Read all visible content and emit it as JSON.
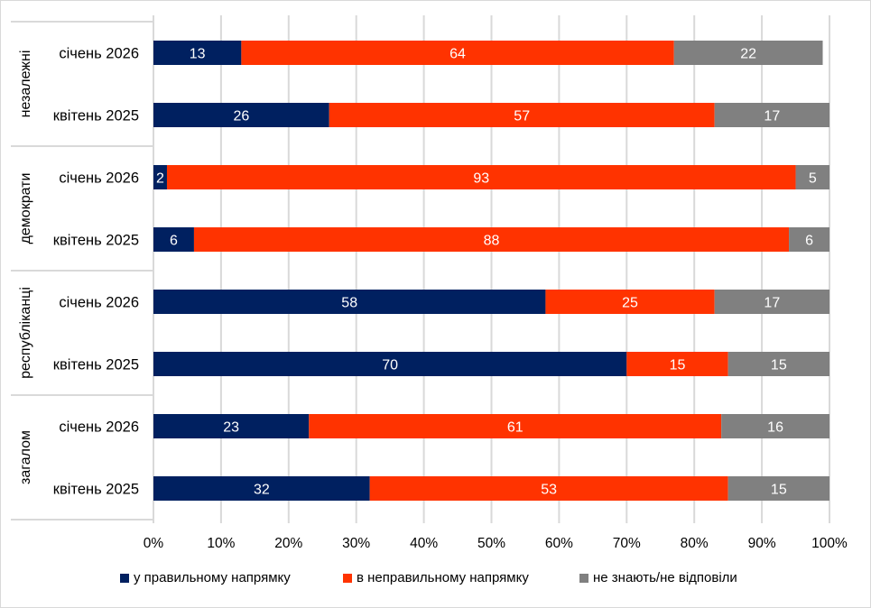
{
  "chart_data": {
    "type": "bar",
    "orientation": "horizontal",
    "stacked": "percent",
    "title": "",
    "xlabel": "",
    "ylabel": "",
    "xlim": [
      0,
      100
    ],
    "grid": true,
    "legend_position": "bottom",
    "x_ticks": [
      "0%",
      "10%",
      "20%",
      "30%",
      "40%",
      "50%",
      "60%",
      "70%",
      "80%",
      "90%",
      "100%"
    ],
    "groups": [
      {
        "name": "незалежні",
        "categories": [
          "січень 2026",
          "квітень 2025"
        ]
      },
      {
        "name": "демократи",
        "categories": [
          "січень 2026",
          "квітень 2025"
        ]
      },
      {
        "name": "республіканці",
        "categories": [
          "січень 2026",
          "квітень 2025"
        ]
      },
      {
        "name": "загалом",
        "categories": [
          "січень 2026",
          "квітень 2025"
        ]
      }
    ],
    "categories": [
      "незалежні / січень 2026",
      "незалежні / квітень 2025",
      "демократи / січень 2026",
      "демократи / квітень 2025",
      "республіканці / січень 2026",
      "республіканці / квітень 2025",
      "загалом / січень 2026",
      "загалом / квітень 2025"
    ],
    "series": [
      {
        "name": "у правильному напрямку",
        "color": "#002060",
        "values": [
          13,
          26,
          2,
          6,
          58,
          70,
          23,
          32
        ]
      },
      {
        "name": "в неправильному напрямку",
        "color": "#FF3300",
        "values": [
          64,
          57,
          93,
          88,
          25,
          15,
          61,
          53
        ]
      },
      {
        "name": "не знають/не відповіли",
        "color": "#808080",
        "values": [
          22,
          17,
          5,
          6,
          17,
          15,
          16,
          15
        ]
      }
    ]
  },
  "legend": {
    "items": [
      {
        "label": "у правильному напрямку",
        "color": "#002060"
      },
      {
        "label": "в неправильному напрямку",
        "color": "#FF3300"
      },
      {
        "label": "не знають/не відповіли",
        "color": "#808080"
      }
    ]
  },
  "colors": {
    "gridline": "#d9d9d9",
    "axis_box": "#d9d9d9",
    "data_label": "#ffffff"
  }
}
